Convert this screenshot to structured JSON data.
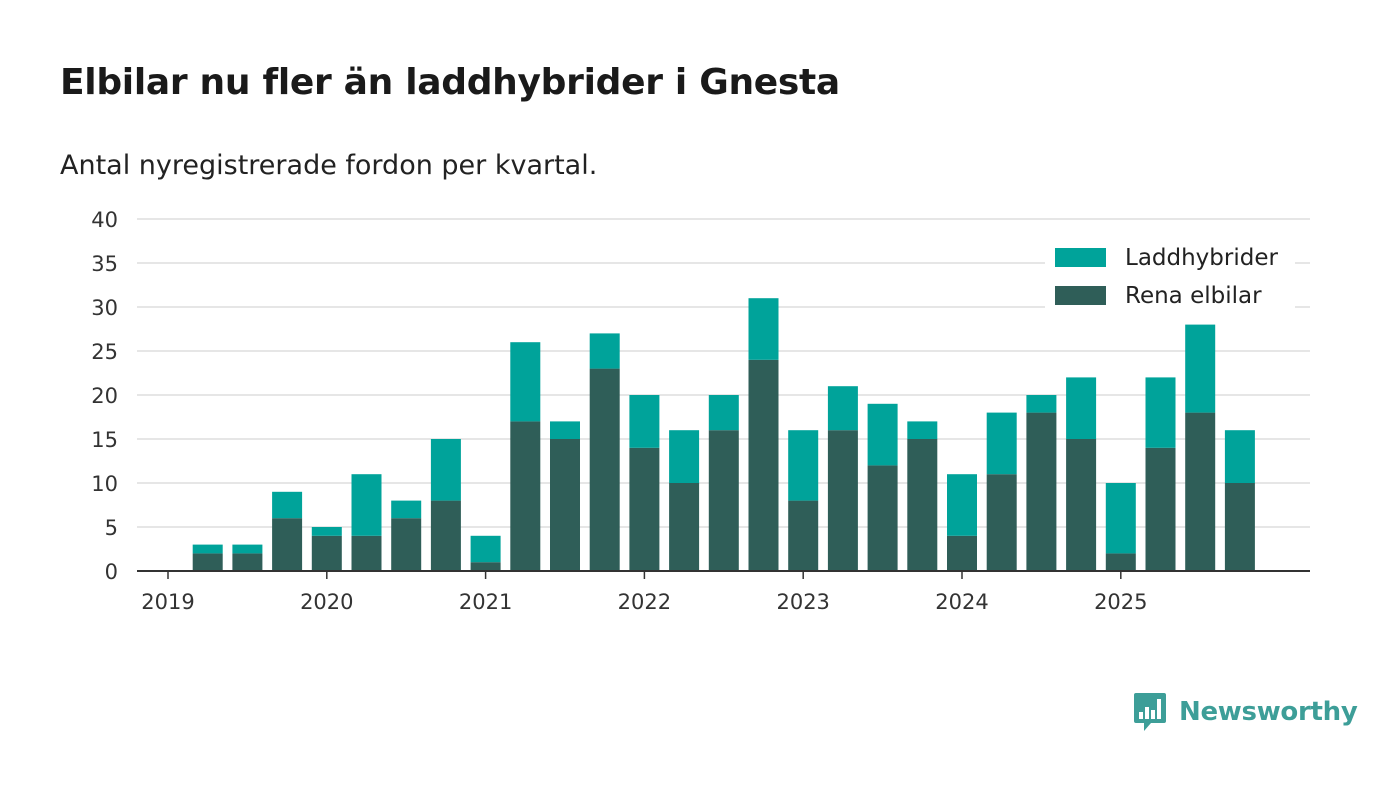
{
  "header": {
    "title": "Elbilar nu fler än laddhybrider i Gnesta",
    "subtitle": "Antal nyregistrerade fordon per kvartal."
  },
  "brand": {
    "name": "Newsworthy",
    "icon": "newsworthy-logo-icon",
    "color": "#3d9e98"
  },
  "colors": {
    "hybrid": "#00a39a",
    "electric": "#2f5e58",
    "grid": "#dddddd",
    "axis": "#333333"
  },
  "chart_data": {
    "type": "bar",
    "stacked": true,
    "title": "Elbilar nu fler än laddhybrider i Gnesta",
    "subtitle": "Antal nyregistrerade fordon per kvartal.",
    "xlabel": "",
    "ylabel": "",
    "ylim": [
      0,
      40
    ],
    "yticks": [
      0,
      5,
      10,
      15,
      20,
      25,
      30,
      35,
      40
    ],
    "xticks": [
      "2019",
      "2020",
      "2021",
      "2022",
      "2023",
      "2024",
      "2025"
    ],
    "grid": true,
    "legend_position": "top-right",
    "categories": [
      "2019 Q1",
      "2019 Q2",
      "2019 Q3",
      "2019 Q4",
      "2020 Q1",
      "2020 Q2",
      "2020 Q3",
      "2020 Q4",
      "2021 Q1",
      "2021 Q2",
      "2021 Q3",
      "2021 Q4",
      "2022 Q1",
      "2022 Q2",
      "2022 Q3",
      "2022 Q4",
      "2023 Q1",
      "2023 Q2",
      "2023 Q3",
      "2023 Q4",
      "2024 Q1",
      "2024 Q2",
      "2024 Q3",
      "2024 Q4",
      "2025 Q1",
      "2025 Q2",
      "2025 Q3",
      "2025 Q4"
    ],
    "series": [
      {
        "name": "Rena elbilar",
        "values": [
          0,
          2,
          2,
          6,
          4,
          4,
          6,
          8,
          1,
          17,
          15,
          23,
          14,
          10,
          16,
          24,
          8,
          16,
          12,
          15,
          4,
          11,
          18,
          15,
          2,
          14,
          18,
          10
        ]
      },
      {
        "name": "Laddhybrider",
        "values": [
          0,
          1,
          1,
          3,
          1,
          7,
          2,
          7,
          3,
          9,
          2,
          4,
          6,
          6,
          4,
          7,
          8,
          5,
          7,
          2,
          7,
          7,
          2,
          7,
          8,
          8,
          10,
          6
        ]
      }
    ]
  }
}
